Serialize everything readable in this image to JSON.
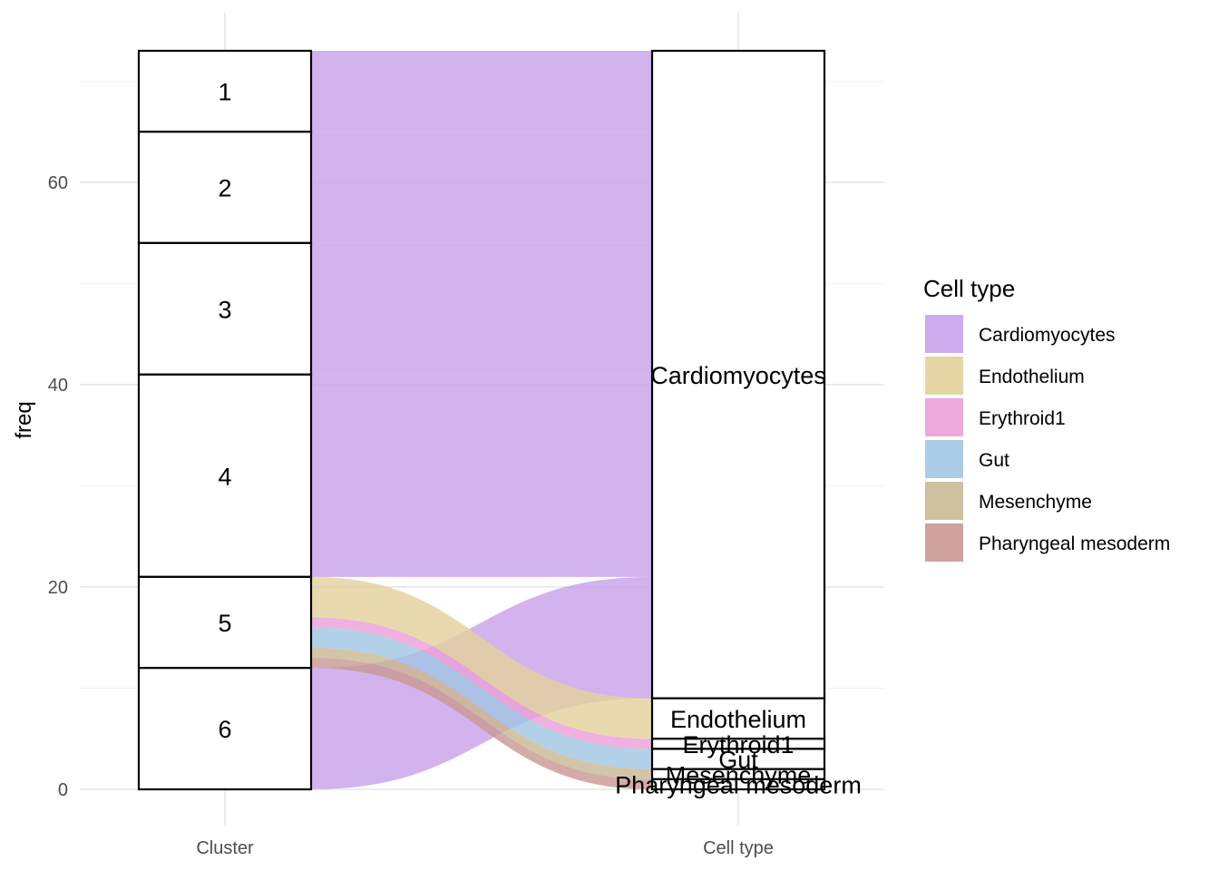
{
  "chart_data": {
    "type": "alluvial",
    "title": "",
    "xlabel": "",
    "ylabel": "freq",
    "ylim": [
      0,
      73
    ],
    "y_ticks": [
      0,
      20,
      40,
      60
    ],
    "axes": [
      "Cluster",
      "Cell type"
    ],
    "grid": true,
    "legend_position": "right",
    "legend_title": "Cell type",
    "strata": {
      "Cluster": [
        {
          "label": "1",
          "value": 8
        },
        {
          "label": "2",
          "value": 11
        },
        {
          "label": "3",
          "value": 13
        },
        {
          "label": "4",
          "value": 20
        },
        {
          "label": "5",
          "value": 9
        },
        {
          "label": "6",
          "value": 12
        }
      ],
      "Cell type": [
        {
          "label": "Cardiomyocytes",
          "value": 64
        },
        {
          "label": "Endothelium",
          "value": 4
        },
        {
          "label": "Erythroid1",
          "value": 1
        },
        {
          "label": "Gut",
          "value": 2
        },
        {
          "label": "Mesenchyme",
          "value": 1
        },
        {
          "label": "Pharyngeal mesoderm",
          "value": 1
        }
      ]
    },
    "flows": [
      {
        "cluster": "1",
        "cell_type": "Cardiomyocytes",
        "freq": 8
      },
      {
        "cluster": "2",
        "cell_type": "Cardiomyocytes",
        "freq": 11
      },
      {
        "cluster": "3",
        "cell_type": "Cardiomyocytes",
        "freq": 13
      },
      {
        "cluster": "4",
        "cell_type": "Cardiomyocytes",
        "freq": 20
      },
      {
        "cluster": "5",
        "cell_type": "Endothelium",
        "freq": 4
      },
      {
        "cluster": "5",
        "cell_type": "Erythroid1",
        "freq": 1
      },
      {
        "cluster": "5",
        "cell_type": "Gut",
        "freq": 2
      },
      {
        "cluster": "5",
        "cell_type": "Mesenchyme",
        "freq": 1
      },
      {
        "cluster": "5",
        "cell_type": "Pharyngeal mesoderm",
        "freq": 1
      },
      {
        "cluster": "6",
        "cell_type": "Cardiomyocytes",
        "freq": 12
      }
    ],
    "series": [
      {
        "name": "Cardiomyocytes",
        "color": "#c8a2ea"
      },
      {
        "name": "Endothelium",
        "color": "#e3d29c"
      },
      {
        "name": "Erythroid1",
        "color": "#eba0d8"
      },
      {
        "name": "Gut",
        "color": "#a2c6e4"
      },
      {
        "name": "Mesenchyme",
        "color": "#c9b894"
      },
      {
        "name": "Pharyngeal mesoderm",
        "color": "#cb9894"
      }
    ]
  }
}
